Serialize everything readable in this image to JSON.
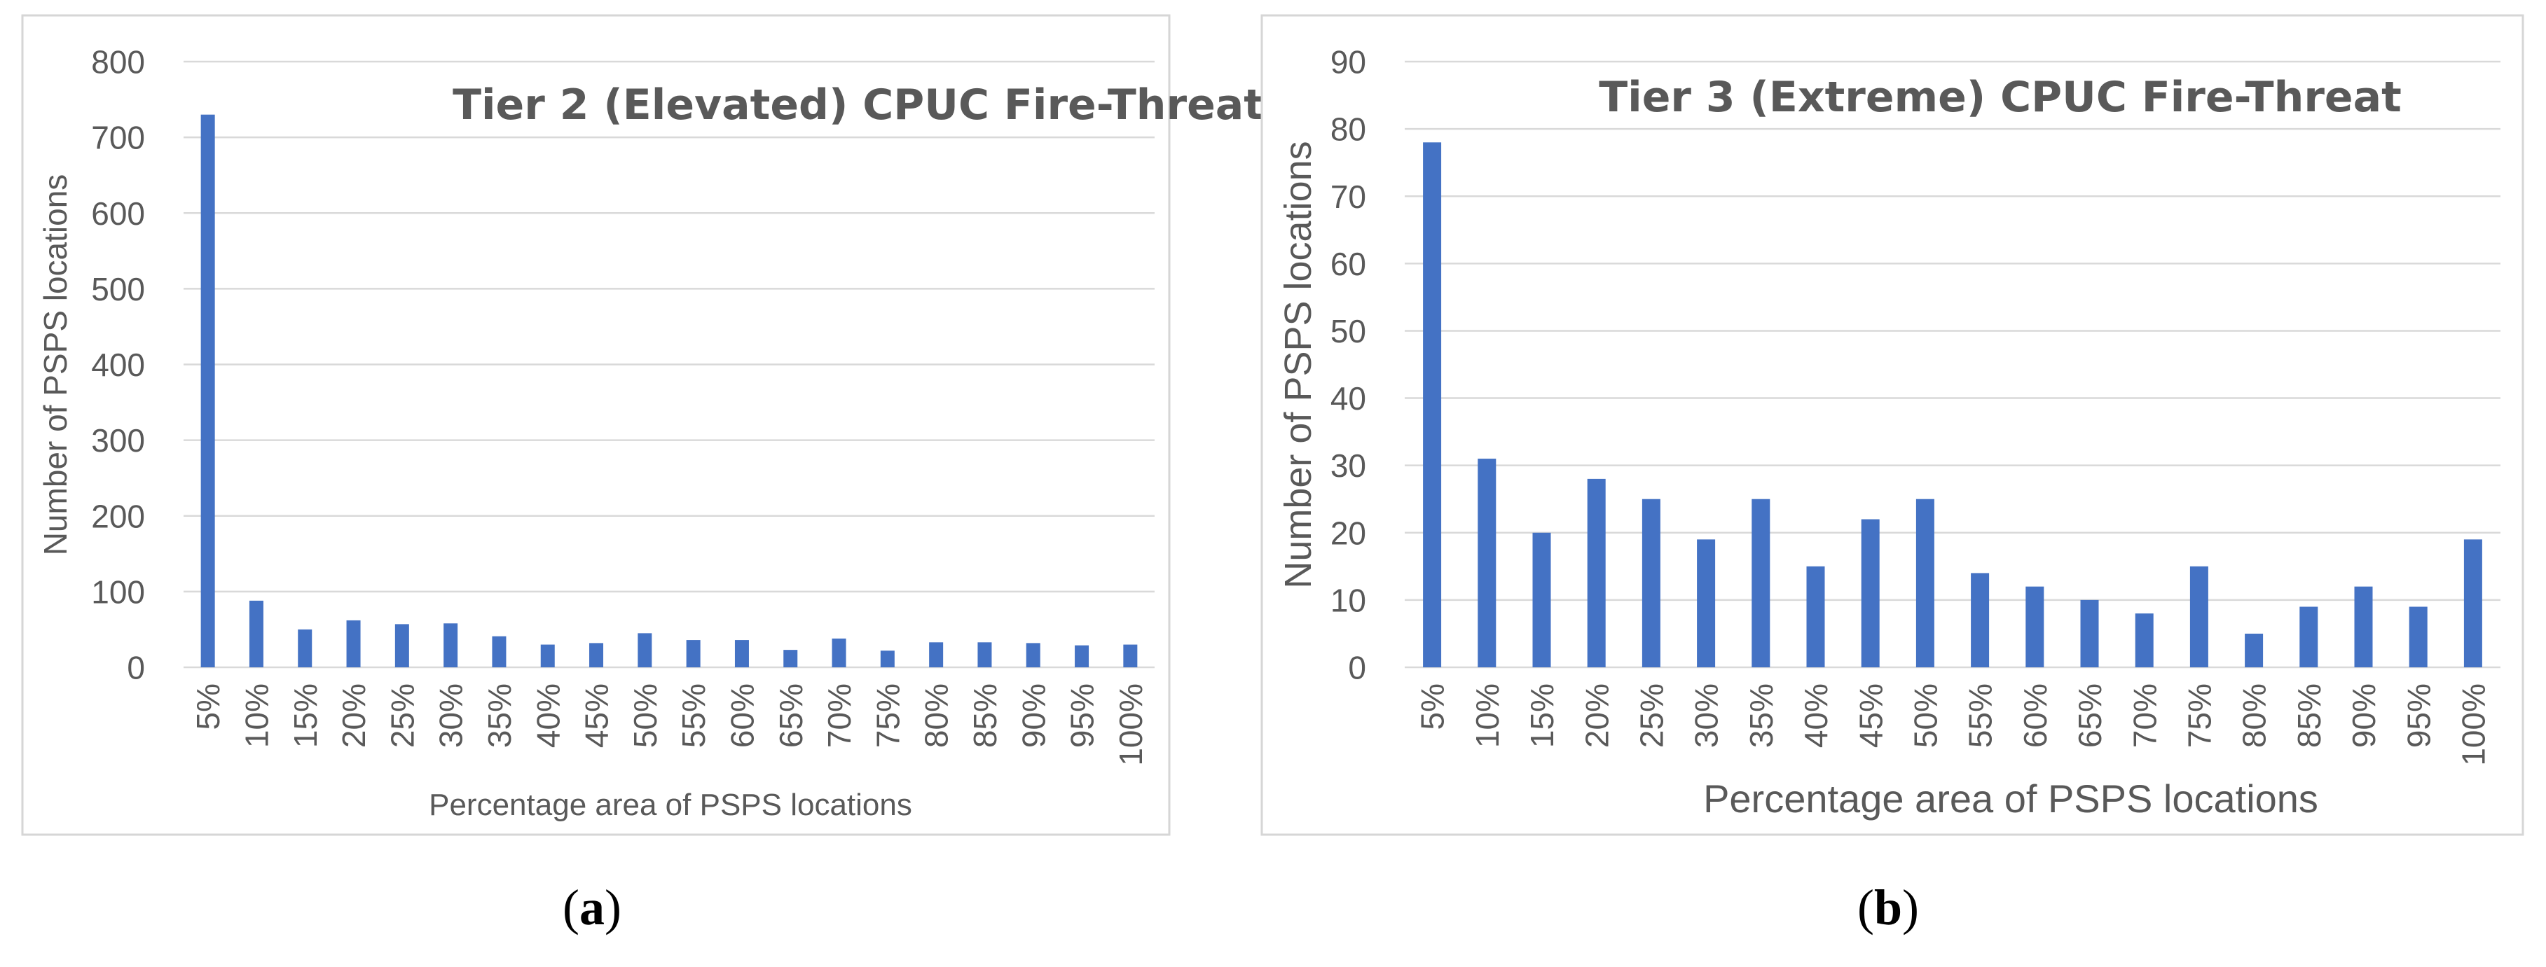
{
  "chart_data": [
    {
      "type": "bar",
      "title": "Tier 2 (Elevated) CPUC Fire-Threat",
      "xlabel": "Percentage area of PSPS locations",
      "ylabel": "Number of PSPS locations",
      "ylim": [
        0,
        800
      ],
      "yticks": [
        "0",
        "100",
        "200",
        "300",
        "400",
        "500",
        "600",
        "700",
        "800"
      ],
      "grid": true,
      "categories": [
        "5%",
        "10%",
        "15%",
        "20%",
        "25%",
        "30%",
        "35%",
        "40%",
        "45%",
        "50%",
        "55%",
        "60%",
        "65%",
        "70%",
        "75%",
        "80%",
        "85%",
        "90%",
        "95%",
        "100%"
      ],
      "values": [
        730,
        88,
        50,
        62,
        57,
        58,
        41,
        30,
        32,
        45,
        36,
        36,
        23,
        38,
        22,
        33,
        33,
        32,
        29,
        30
      ],
      "color": "#4472c4",
      "caption_letter": "a"
    },
    {
      "type": "bar",
      "title": "Tier 3 (Extreme) CPUC Fire-Threat",
      "xlabel": "Percentage area of PSPS locations",
      "ylabel": "Number of PSPS locations",
      "ylim": [
        0,
        90
      ],
      "yticks": [
        "0",
        "10",
        "20",
        "30",
        "40",
        "50",
        "60",
        "70",
        "80",
        "90"
      ],
      "grid": true,
      "categories": [
        "5%",
        "10%",
        "15%",
        "20%",
        "25%",
        "30%",
        "35%",
        "40%",
        "45%",
        "50%",
        "55%",
        "60%",
        "65%",
        "70%",
        "75%",
        "80%",
        "85%",
        "90%",
        "95%",
        "100%"
      ],
      "values": [
        78,
        31,
        20,
        28,
        25,
        19,
        25,
        15,
        22,
        25,
        14,
        12,
        10,
        8,
        15,
        5,
        9,
        12,
        9,
        19
      ],
      "color": "#4472c4",
      "caption_letter": "b"
    }
  ],
  "captions": [
    {
      "open": "(",
      "letter": "a",
      "close": ")"
    },
    {
      "open": "(",
      "letter": "b",
      "close": ")"
    }
  ]
}
